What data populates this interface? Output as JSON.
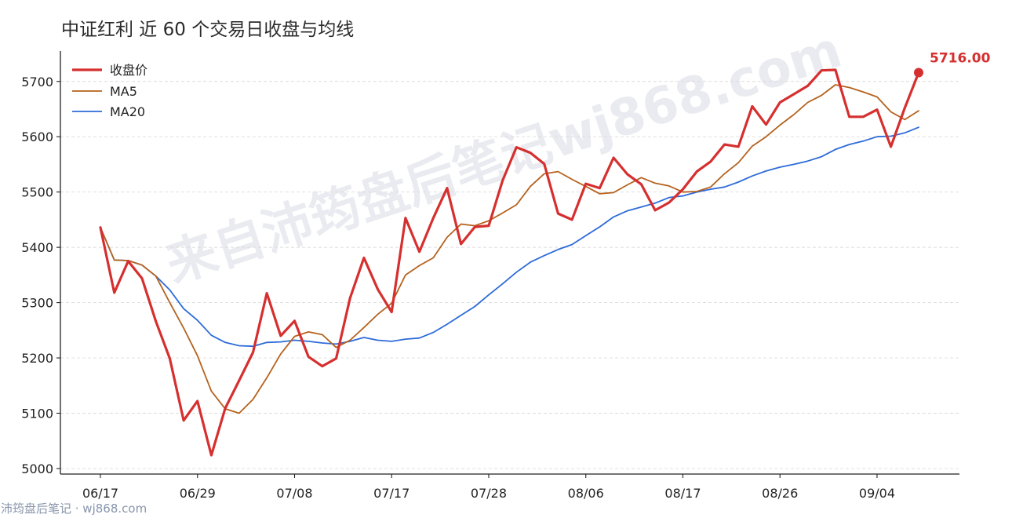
{
  "chart_data": {
    "type": "line",
    "title": "中证红利 近 60 个交易日收盘与均线",
    "x_tick_labels": [
      "06/17",
      "06/29",
      "07/08",
      "07/17",
      "07/28",
      "08/06",
      "08/17",
      "08/26",
      "09/04"
    ],
    "y_ticks": [
      5000,
      5100,
      5200,
      5300,
      5400,
      5500,
      5600,
      5700
    ],
    "ylim": [
      4990,
      5755
    ],
    "grid": "horizontal dashed",
    "legend_position": "top-left",
    "series": [
      {
        "name": "收盘价",
        "color": "#d62f2f",
        "values": [
          5436,
          5318,
          5375,
          5344,
          5266,
          5199,
          5087,
          5122,
          5024,
          5109,
          5159,
          5210,
          5317,
          5240,
          5267,
          5202,
          5185,
          5199,
          5308,
          5381,
          5324,
          5283,
          5453,
          5392,
          5453,
          5507,
          5406,
          5437,
          5439,
          5521,
          5581,
          5571,
          5551,
          5461,
          5450,
          5515,
          5507,
          5562,
          5532,
          5514,
          5467,
          5481,
          5505,
          5537,
          5555,
          5586,
          5582,
          5655,
          5622,
          5662,
          5677,
          5692,
          5720,
          5721,
          5636,
          5636,
          5649,
          5582,
          5652,
          5716
        ]
      },
      {
        "name": "MA5",
        "color": "#b5621e",
        "values": [
          5436,
          5377,
          5376,
          5368,
          5348,
          5300,
          5254,
          5204,
          5140,
          5108,
          5100,
          5125,
          5164,
          5207,
          5239,
          5247,
          5242,
          5219,
          5232,
          5255,
          5279,
          5299,
          5350,
          5367,
          5381,
          5418,
          5442,
          5439,
          5448,
          5462,
          5477,
          5510,
          5533,
          5537,
          5523,
          5510,
          5497,
          5499,
          5513,
          5526,
          5516,
          5511,
          5500,
          5501,
          5509,
          5533,
          5553,
          5583,
          5600,
          5621,
          5640,
          5662,
          5675,
          5694,
          5689,
          5681,
          5672,
          5645,
          5631,
          5647
        ]
      },
      {
        "name": "MA20",
        "color": "#2d6bd9",
        "values": [
          5436,
          5377,
          5376,
          5368,
          5348,
          5323,
          5289,
          5268,
          5241,
          5228,
          5222,
          5221,
          5228,
          5229,
          5232,
          5230,
          5227,
          5225,
          5230,
          5237,
          5232,
          5230,
          5234,
          5236,
          5246,
          5261,
          5277,
          5293,
          5314,
          5334,
          5355,
          5373,
          5385,
          5396,
          5405,
          5421,
          5437,
          5455,
          5466,
          5473,
          5480,
          5490,
          5493,
          5500,
          5505,
          5509,
          5518,
          5529,
          5538,
          5545,
          5550,
          5556,
          5564,
          5577,
          5586,
          5592,
          5600,
          5601,
          5607,
          5617
        ]
      }
    ],
    "last_value_label": "5716.00"
  },
  "watermark": "来自沛筠盘后笔记wj868.com",
  "footer": "沛筠盘后笔记 · wj868.com"
}
